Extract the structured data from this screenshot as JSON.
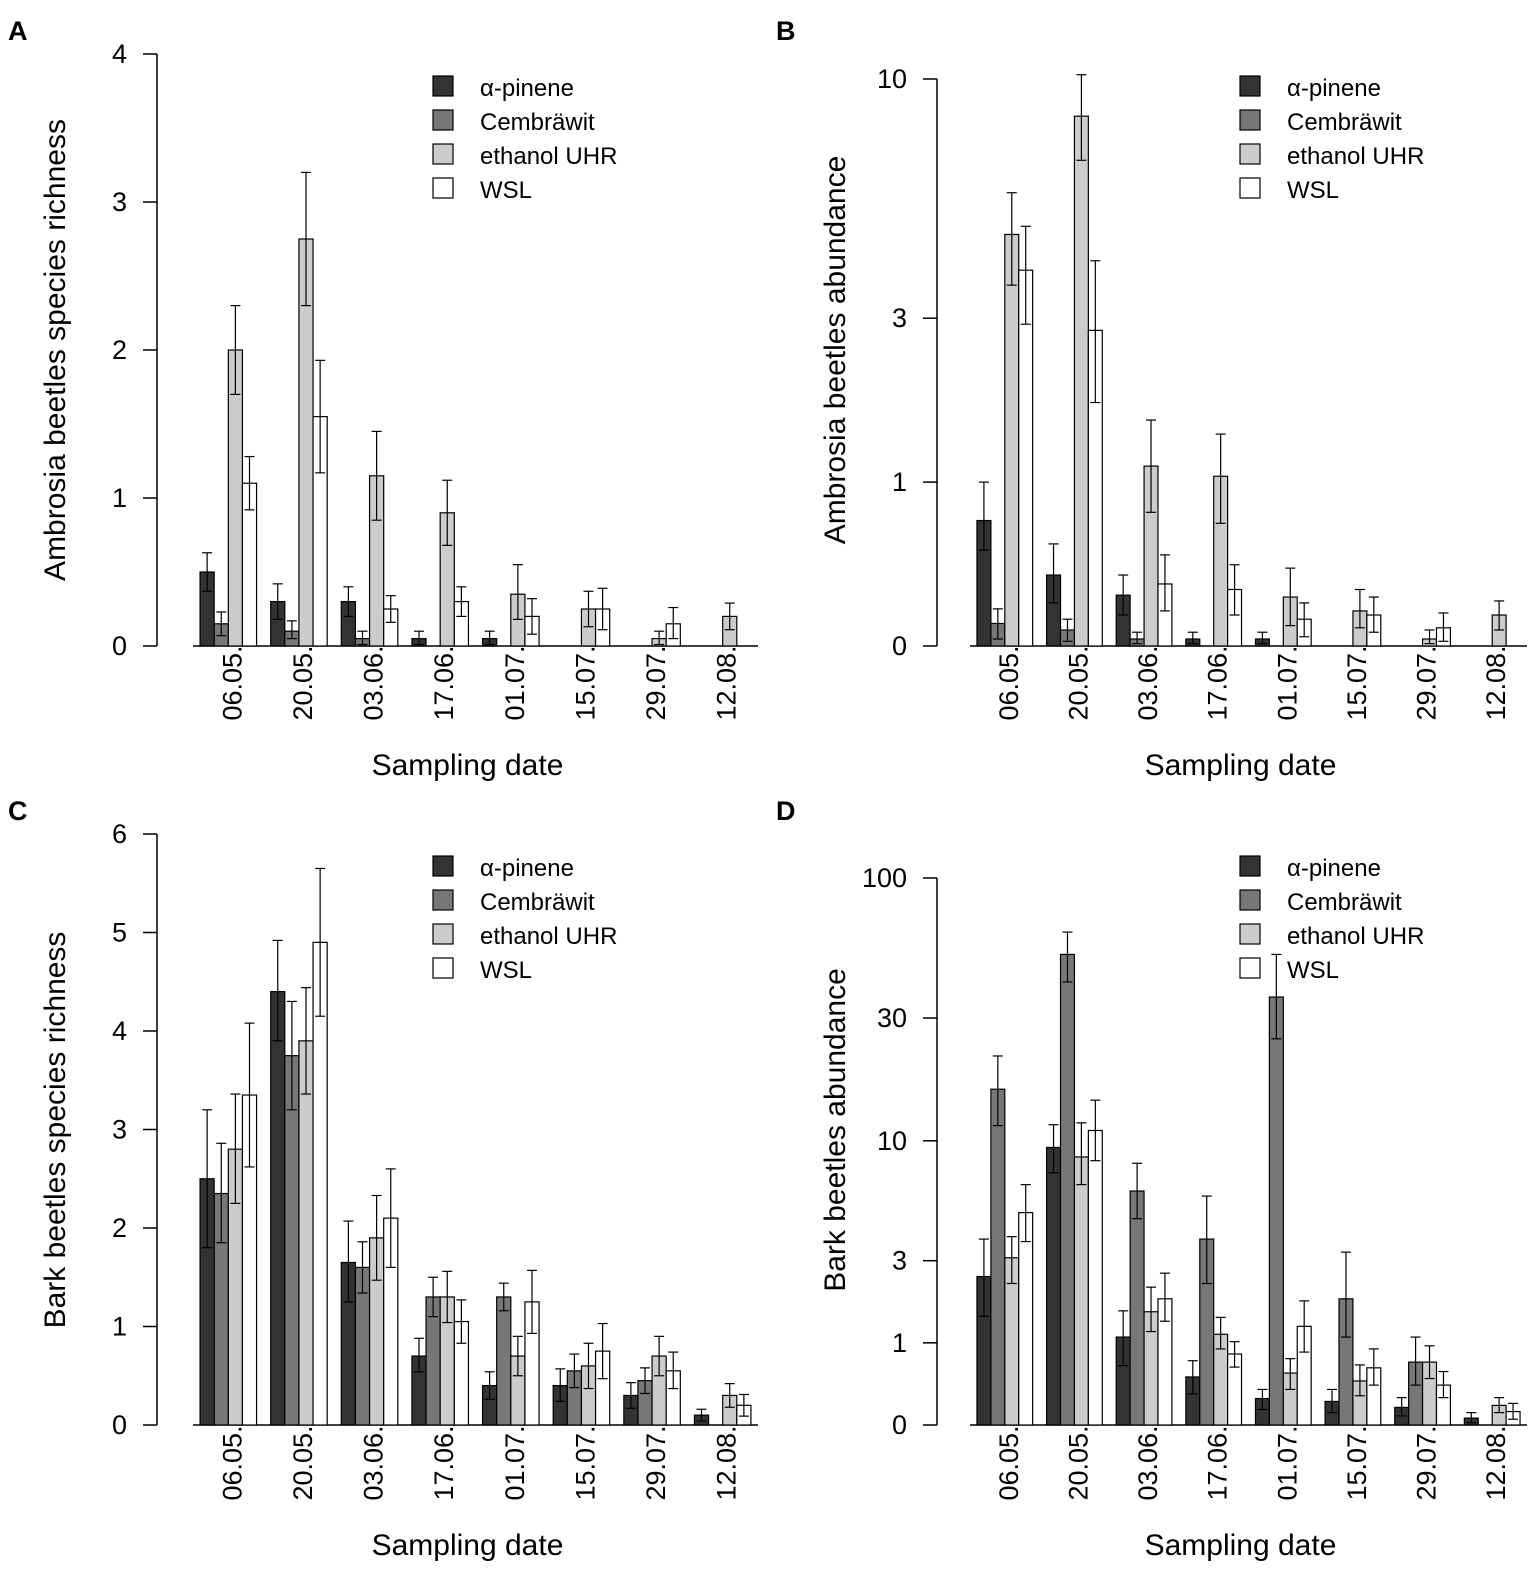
{
  "colors": {
    "alpha_pinene": "#333333",
    "cembrawit": "#777777",
    "ethanol_uhr": "#cccccc",
    "wsl": "#ffffff",
    "axis": "#000000"
  },
  "chart_data": [
    {
      "panel": "A",
      "type": "bar",
      "ylabel": "Ambrosia beetles species richness",
      "xlabel": "Sampling date",
      "scale": "linear",
      "ylim": [
        0,
        4
      ],
      "yticks": [
        0,
        1,
        2,
        3,
        4
      ],
      "ytick_labels": [
        "0",
        "1",
        "2",
        "3",
        "4"
      ],
      "categories": [
        "06.05.",
        "20.05.",
        "03.06.",
        "17.06.",
        "01.07.",
        "15.07.",
        "29.07.",
        "12.08."
      ],
      "series": [
        {
          "name": "α-pinene",
          "color_key": "alpha_pinene",
          "values": [
            0.5,
            0.3,
            0.3,
            0.05,
            0.05,
            0,
            0,
            0
          ],
          "err_low": [
            0.37,
            0.18,
            0.2,
            0.01,
            0.01,
            0,
            0,
            0
          ],
          "err_high": [
            0.63,
            0.42,
            0.4,
            0.1,
            0.1,
            0,
            0,
            0
          ]
        },
        {
          "name": "Cembräwit",
          "color_key": "cembrawit",
          "values": [
            0.15,
            0.1,
            0.05,
            0,
            0,
            0,
            0,
            0
          ],
          "err_low": [
            0.07,
            0.05,
            0.01,
            0,
            0,
            0,
            0,
            0
          ],
          "err_high": [
            0.23,
            0.17,
            0.1,
            0,
            0,
            0,
            0,
            0
          ]
        },
        {
          "name": "ethanol UHR",
          "color_key": "ethanol_uhr",
          "values": [
            2.0,
            2.75,
            1.15,
            0.9,
            0.35,
            0.25,
            0.05,
            0.2
          ],
          "err_low": [
            1.7,
            2.3,
            0.85,
            0.68,
            0.18,
            0.13,
            0.01,
            0.11
          ],
          "err_high": [
            2.3,
            3.2,
            1.45,
            1.12,
            0.55,
            0.37,
            0.1,
            0.29
          ]
        },
        {
          "name": "WSL",
          "color_key": "wsl",
          "values": [
            1.1,
            1.55,
            0.25,
            0.3,
            0.2,
            0.25,
            0.15,
            0
          ],
          "err_low": [
            0.92,
            1.17,
            0.16,
            0.2,
            0.08,
            0.11,
            0.05,
            0
          ],
          "err_high": [
            1.28,
            1.93,
            0.34,
            0.4,
            0.32,
            0.39,
            0.26,
            0
          ]
        }
      ]
    },
    {
      "panel": "B",
      "type": "bar",
      "ylabel": "Ambrosia beetles abundance",
      "xlabel": "Sampling date",
      "scale": "log1p",
      "ylim": [
        0,
        10
      ],
      "yticks": [
        0,
        1,
        3,
        10
      ],
      "ytick_labels": [
        "0",
        "1",
        "3",
        "10"
      ],
      "categories": [
        "06.05.",
        "20.05.",
        "03.06.",
        "17.06.",
        "01.07.",
        "15.07.",
        "29.07.",
        "12.08."
      ],
      "series": [
        {
          "name": "α-pinene",
          "color_key": "alpha_pinene",
          "values": [
            0.7,
            0.35,
            0.24,
            0.03,
            0.03,
            0,
            0,
            0
          ],
          "err_low": [
            0.5,
            0.2,
            0.14,
            0.01,
            0.01,
            0,
            0,
            0
          ],
          "err_high": [
            1.0,
            0.54,
            0.35,
            0.06,
            0.06,
            0,
            0,
            0
          ]
        },
        {
          "name": "Cembräwit",
          "color_key": "cembrawit",
          "values": [
            0.1,
            0.07,
            0.03,
            0,
            0,
            0,
            0,
            0
          ],
          "err_low": [
            0.03,
            0.02,
            0.01,
            0,
            0,
            0,
            0,
            0
          ],
          "err_high": [
            0.17,
            0.12,
            0.06,
            0,
            0,
            0,
            0,
            0
          ]
        },
        {
          "name": "ethanol UHR",
          "color_key": "ethanol_uhr",
          "values": [
            4.7,
            8.4,
            1.14,
            1.05,
            0.23,
            0.16,
            0.03,
            0.14
          ],
          "err_low": [
            3.6,
            6.8,
            0.76,
            0.68,
            0.09,
            0.08,
            0.01,
            0.07
          ],
          "err_high": [
            5.8,
            10.2,
            1.6,
            1.45,
            0.39,
            0.27,
            0.07,
            0.21
          ]
        },
        {
          "name": "WSL",
          "color_key": "wsl",
          "values": [
            3.9,
            2.8,
            0.3,
            0.27,
            0.12,
            0.14,
            0.08,
            0
          ],
          "err_low": [
            2.9,
            1.8,
            0.16,
            0.14,
            0.04,
            0.06,
            0.02,
            0
          ],
          "err_high": [
            4.9,
            4.1,
            0.47,
            0.41,
            0.2,
            0.23,
            0.15,
            0
          ]
        }
      ]
    },
    {
      "panel": "C",
      "type": "bar",
      "ylabel": "Bark beetles species richness",
      "xlabel": "Sampling date",
      "scale": "linear",
      "ylim": [
        0,
        6
      ],
      "yticks": [
        0,
        1,
        2,
        3,
        4,
        5,
        6
      ],
      "ytick_labels": [
        "0",
        "1",
        "2",
        "3",
        "4",
        "5",
        "6"
      ],
      "categories": [
        "06.05.",
        "20.05.",
        "03.06.",
        "17.06.",
        "01.07.",
        "15.07.",
        "29.07.",
        "12.08."
      ],
      "series": [
        {
          "name": "α-pinene",
          "color_key": "alpha_pinene",
          "values": [
            2.5,
            4.4,
            1.65,
            0.7,
            0.4,
            0.4,
            0.3,
            0.1
          ],
          "err_low": [
            1.8,
            3.9,
            1.25,
            0.54,
            0.26,
            0.24,
            0.17,
            0.04
          ],
          "err_high": [
            3.2,
            4.92,
            2.07,
            0.88,
            0.54,
            0.57,
            0.43,
            0.16
          ]
        },
        {
          "name": "Cembräwit",
          "color_key": "cembrawit",
          "values": [
            2.35,
            3.75,
            1.6,
            1.3,
            1.3,
            0.55,
            0.45,
            0
          ],
          "err_low": [
            1.85,
            3.2,
            1.34,
            1.1,
            1.16,
            0.38,
            0.32,
            0
          ],
          "err_high": [
            2.86,
            4.3,
            1.86,
            1.5,
            1.44,
            0.72,
            0.58,
            0
          ]
        },
        {
          "name": "ethanol UHR",
          "color_key": "ethanol_uhr",
          "values": [
            2.8,
            3.9,
            1.9,
            1.3,
            0.7,
            0.6,
            0.7,
            0.3
          ],
          "err_low": [
            2.25,
            3.36,
            1.47,
            1.04,
            0.5,
            0.37,
            0.5,
            0.18
          ],
          "err_high": [
            3.36,
            4.44,
            2.33,
            1.56,
            0.9,
            0.83,
            0.9,
            0.42
          ]
        },
        {
          "name": "WSL",
          "color_key": "wsl",
          "values": [
            3.35,
            4.9,
            2.1,
            1.05,
            1.25,
            0.75,
            0.55,
            0.2
          ],
          "err_low": [
            2.62,
            4.15,
            1.6,
            0.83,
            0.93,
            0.47,
            0.37,
            0.09
          ],
          "err_high": [
            4.08,
            5.65,
            2.6,
            1.27,
            1.57,
            1.03,
            0.74,
            0.31
          ]
        }
      ]
    },
    {
      "panel": "D",
      "type": "bar",
      "ylabel": "Bark beetles abundance",
      "xlabel": "Sampling date",
      "scale": "log1p",
      "ylim": [
        0,
        100
      ],
      "yticks": [
        0,
        1,
        3,
        10,
        30,
        100
      ],
      "ytick_labels": [
        "0",
        "1",
        "3",
        "10",
        "30",
        "100"
      ],
      "categories": [
        "06.05.",
        "20.05.",
        "03.06.",
        "17.06.",
        "01.07.",
        "15.07.",
        "29.07.",
        "12.08."
      ],
      "series": [
        {
          "name": "α-pinene",
          "color_key": "alpha_pinene",
          "values": [
            2.5,
            9.4,
            1.1,
            0.5,
            0.25,
            0.22,
            0.16,
            0.06
          ],
          "err_low": [
            1.5,
            7.4,
            0.65,
            0.3,
            0.14,
            0.11,
            0.08,
            0.02
          ],
          "err_high": [
            3.8,
            11.6,
            1.62,
            0.72,
            0.35,
            0.35,
            0.26,
            0.11
          ]
        },
        {
          "name": "Cembräwit",
          "color_key": "cembrawit",
          "values": [
            16,
            52,
            6.2,
            3.8,
            36,
            1.9,
            0.7,
            0
          ],
          "err_low": [
            11.5,
            41,
            4.7,
            2.3,
            25,
            1.1,
            0.4,
            0
          ],
          "err_high": [
            21.5,
            63,
            8.1,
            5.9,
            52,
            3.3,
            1.1,
            0
          ]
        },
        {
          "name": "ethanol UHR",
          "color_key": "ethanol_uhr",
          "values": [
            3.1,
            8.6,
            1.6,
            1.15,
            0.55,
            0.45,
            0.7,
            0.18
          ],
          "err_low": [
            2.3,
            6.6,
            1.2,
            0.9,
            0.35,
            0.28,
            0.48,
            0.11
          ],
          "err_high": [
            3.9,
            11.8,
            2.2,
            1.48,
            0.75,
            0.66,
            0.95,
            0.26
          ]
        },
        {
          "name": "WSL",
          "color_key": "wsl",
          "values": [
            5.0,
            11.0,
            1.9,
            0.82,
            1.3,
            0.62,
            0.4,
            0.12
          ],
          "err_low": [
            3.7,
            8.3,
            1.4,
            0.63,
            0.85,
            0.4,
            0.26,
            0.05
          ],
          "err_high": [
            6.6,
            14.5,
            2.6,
            1.02,
            1.85,
            0.9,
            0.57,
            0.2
          ]
        }
      ]
    }
  ]
}
